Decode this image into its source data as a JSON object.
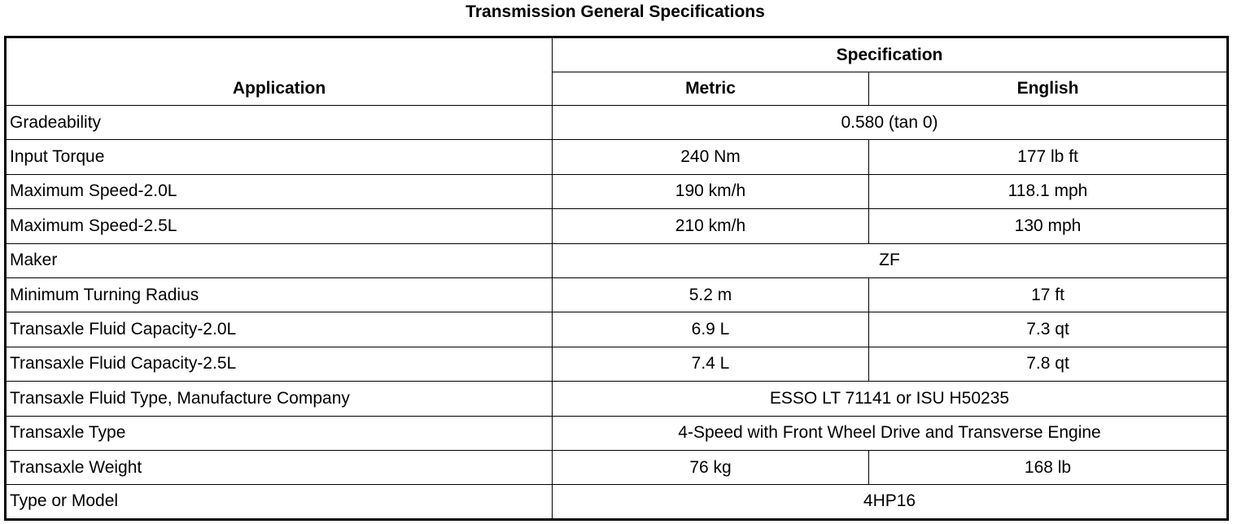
{
  "title": "Transmission General Specifications",
  "table": {
    "header": {
      "application": "Application",
      "specification": "Specification",
      "metric": "Metric",
      "english": "English"
    },
    "rows": [
      [
        "Gradeability",
        "0.580 (tan 0)"
      ],
      [
        "Input Torque",
        "240 Nm",
        "177 lb ft"
      ],
      [
        "Maximum Speed-2.0L",
        "190 km/h",
        "118.1 mph"
      ],
      [
        "Maximum Speed-2.5L",
        "210 km/h",
        "130 mph"
      ],
      [
        "Maker",
        "ZF"
      ],
      [
        "Minimum Turning Radius",
        "5.2 m",
        "17 ft"
      ],
      [
        "Transaxle Fluid Capacity-2.0L",
        "6.9 L",
        "7.3 qt"
      ],
      [
        "Transaxle Fluid Capacity-2.5L",
        "7.4 L",
        "7.8 qt"
      ],
      [
        "Transaxle Fluid Type, Manufacture Company",
        "ESSO LT 71141 or ISU H50235"
      ],
      [
        "Transaxle Type",
        "4-Speed with Front Wheel Drive and Transverse Engine"
      ],
      [
        "Transaxle Weight",
        "76 kg",
        "168 lb"
      ],
      [
        "Type or Model",
        "4HP16"
      ]
    ]
  }
}
